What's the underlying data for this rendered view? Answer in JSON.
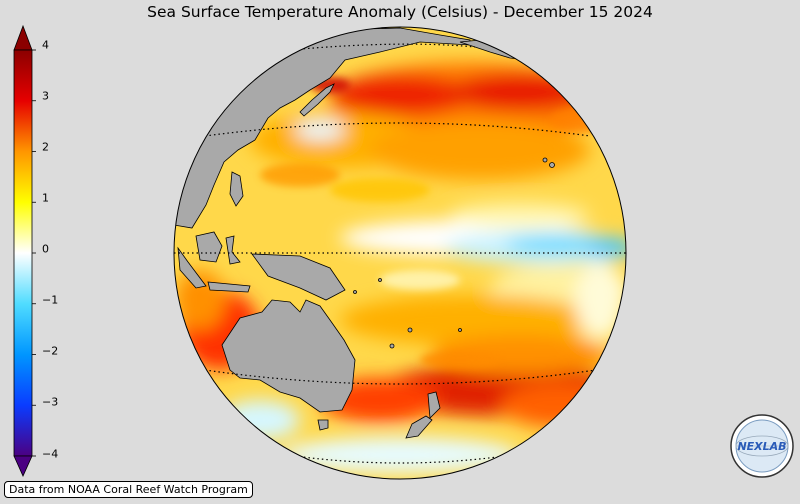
{
  "title": "Sea Surface Temperature Anomaly (Celsius) - December 15 2024",
  "colorbar": {
    "min": -4,
    "max": 4,
    "ticks": [
      "4",
      "3",
      "2",
      "1",
      "0",
      "−1",
      "−2",
      "−3",
      "−4"
    ],
    "stops": [
      {
        "value": -4,
        "color": "#4b0082"
      },
      {
        "value": -3,
        "color": "#0a3cff"
      },
      {
        "value": -2,
        "color": "#0096ff"
      },
      {
        "value": -1,
        "color": "#50dcff"
      },
      {
        "value": 0,
        "color": "#ffffff"
      },
      {
        "value": 1,
        "color": "#ffff00"
      },
      {
        "value": 2,
        "color": "#ff9600"
      },
      {
        "value": 3,
        "color": "#e60000"
      },
      {
        "value": 4,
        "color": "#8b0000"
      }
    ]
  },
  "map": {
    "projection": "orthographic",
    "ocean_base_color": "#ffd84a",
    "land_color": "#a9a9a9"
  },
  "credit": "Data from NOAA Coral Reef Watch Program",
  "logo": {
    "text": "NEXLAB"
  }
}
